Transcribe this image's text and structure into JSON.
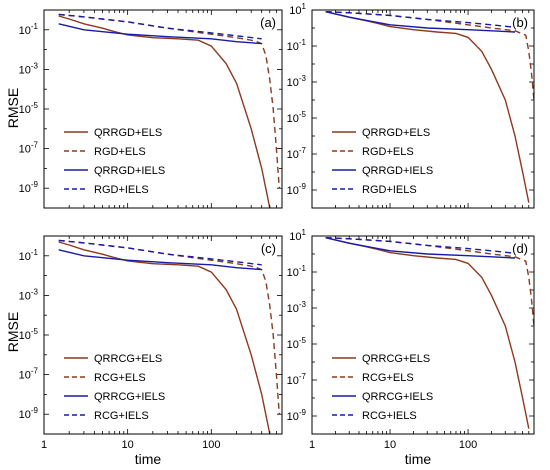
{
  "figure": {
    "ylabel": "RMSE",
    "xlabel": "time"
  },
  "styles": {
    "ELS": {
      "color": "#8b3a1e",
      "dash": ""
    },
    "ELS_dashed": {
      "color": "#8b3a1e",
      "dash": "6,4"
    },
    "IELS": {
      "color": "#1a1aaa",
      "dash": ""
    },
    "IELS_dashed": {
      "color": "#1a1aaa",
      "dash": "6,4"
    }
  },
  "chart_data": [
    {
      "type": "line",
      "panel_label": "(a)",
      "x_scale": "log",
      "y_scale": "log",
      "xlim": [
        1,
        700
      ],
      "ylim": [
        1e-10,
        1
      ],
      "xticks": [
        {
          "v": 1,
          "label": "1"
        },
        {
          "v": 10,
          "label": "10"
        },
        {
          "v": 100,
          "label": "100"
        }
      ],
      "yticks": [
        {
          "v": 0.1,
          "exp": "-1"
        },
        {
          "v": 0.001,
          "exp": "-3"
        },
        {
          "v": 1e-05,
          "exp": "-5"
        },
        {
          "v": 1e-07,
          "exp": "-7"
        },
        {
          "v": 1e-09,
          "exp": "-9"
        }
      ],
      "legend_position": "bottom-left",
      "series": [
        {
          "name": "QRRGD+ELS",
          "style": "ELS",
          "x": [
            1.5,
            2,
            3,
            5,
            7,
            10,
            20,
            40,
            70,
            100,
            150,
            200,
            300,
            400,
            500
          ],
          "y": [
            0.5,
            0.35,
            0.2,
            0.12,
            0.08,
            0.055,
            0.04,
            0.035,
            0.03,
            0.015,
            0.002,
            0.0002,
            1e-06,
            1e-08,
            1e-10
          ]
        },
        {
          "name": "RGD+ELS",
          "style": "ELS_dashed",
          "x": [
            1.5,
            3,
            10,
            30,
            100,
            200,
            300,
            350,
            400,
            450,
            500,
            550,
            600,
            650
          ],
          "y": [
            0.6,
            0.45,
            0.25,
            0.12,
            0.06,
            0.04,
            0.03,
            0.025,
            0.02,
            0.005,
            0.0003,
            1e-05,
            1e-07,
            1e-09
          ]
        },
        {
          "name": "QRRGD+IELS",
          "style": "IELS",
          "x": [
            1.5,
            3,
            10,
            30,
            100,
            200,
            400
          ],
          "y": [
            0.2,
            0.1,
            0.06,
            0.045,
            0.035,
            0.025,
            0.02
          ]
        },
        {
          "name": "RGD+IELS",
          "style": "IELS_dashed",
          "x": [
            1.5,
            3,
            10,
            30,
            100,
            200,
            400
          ],
          "y": [
            0.6,
            0.45,
            0.25,
            0.12,
            0.07,
            0.05,
            0.035
          ]
        }
      ]
    },
    {
      "type": "line",
      "panel_label": "(b)",
      "x_scale": "log",
      "y_scale": "log",
      "xlim": [
        1,
        700
      ],
      "ylim": [
        1e-10,
        10
      ],
      "xticks": [
        {
          "v": 1,
          "label": "1"
        },
        {
          "v": 10,
          "label": "10"
        },
        {
          "v": 100,
          "label": "100"
        }
      ],
      "yticks": [
        {
          "v": 10,
          "exp": "1"
        },
        {
          "v": 0.1,
          "exp": "-1"
        },
        {
          "v": 0.001,
          "exp": "-3"
        },
        {
          "v": 1e-05,
          "exp": "-5"
        },
        {
          "v": 1e-07,
          "exp": "-7"
        },
        {
          "v": 1e-09,
          "exp": "-9"
        }
      ],
      "legend_position": "bottom-left",
      "series": [
        {
          "name": "QRRGD+ELS",
          "style": "ELS",
          "x": [
            1.5,
            2,
            3,
            5,
            7,
            10,
            20,
            40,
            70,
            100,
            150,
            200,
            300,
            400,
            500,
            600
          ],
          "y": [
            8,
            6,
            4,
            2.5,
            1.8,
            1.2,
            0.8,
            0.6,
            0.5,
            0.3,
            0.05,
            0.005,
            0.0001,
            1e-06,
            1e-08,
            2e-10
          ]
        },
        {
          "name": "RGD+ELS",
          "style": "ELS_dashed",
          "x": [
            1.5,
            3,
            10,
            30,
            100,
            200,
            400,
            550,
            600,
            650,
            700
          ],
          "y": [
            8,
            7,
            5,
            3,
            1.5,
            1,
            0.7,
            0.4,
            0.05,
            0.003,
            0.0001
          ]
        },
        {
          "name": "QRRGD+IELS",
          "style": "IELS",
          "x": [
            1.5,
            3,
            10,
            30,
            100,
            200,
            400
          ],
          "y": [
            8,
            4,
            1.5,
            1,
            0.8,
            0.7,
            0.6
          ]
        },
        {
          "name": "RGD+IELS",
          "style": "IELS_dashed",
          "x": [
            1.5,
            3,
            10,
            30,
            100,
            200,
            400
          ],
          "y": [
            8,
            7,
            5,
            3,
            2,
            1.5,
            1.1
          ]
        }
      ]
    },
    {
      "type": "line",
      "panel_label": "(c)",
      "x_scale": "log",
      "y_scale": "log",
      "xlim": [
        1,
        700
      ],
      "ylim": [
        1e-10,
        1
      ],
      "xticks": [
        {
          "v": 1,
          "label": "1"
        },
        {
          "v": 10,
          "label": "10"
        },
        {
          "v": 100,
          "label": "100"
        }
      ],
      "yticks": [
        {
          "v": 0.1,
          "exp": "-1"
        },
        {
          "v": 0.001,
          "exp": "-3"
        },
        {
          "v": 1e-05,
          "exp": "-5"
        },
        {
          "v": 1e-07,
          "exp": "-7"
        },
        {
          "v": 1e-09,
          "exp": "-9"
        }
      ],
      "legend_position": "bottom-left",
      "series": [
        {
          "name": "QRRCG+ELS",
          "style": "ELS",
          "x": [
            1.5,
            2,
            3,
            5,
            7,
            10,
            20,
            40,
            70,
            100,
            150,
            200,
            300,
            400,
            500
          ],
          "y": [
            0.5,
            0.35,
            0.2,
            0.12,
            0.08,
            0.055,
            0.04,
            0.035,
            0.03,
            0.015,
            0.002,
            0.0002,
            1e-06,
            1e-08,
            1e-10
          ]
        },
        {
          "name": "RCG+ELS",
          "style": "ELS_dashed",
          "x": [
            1.5,
            3,
            10,
            30,
            100,
            200,
            300,
            350,
            400,
            450,
            500,
            550,
            600,
            650
          ],
          "y": [
            0.6,
            0.45,
            0.25,
            0.12,
            0.06,
            0.04,
            0.03,
            0.025,
            0.02,
            0.005,
            0.0003,
            1e-05,
            1e-07,
            1e-09
          ]
        },
        {
          "name": "QRRCG+IELS",
          "style": "IELS",
          "x": [
            1.5,
            3,
            10,
            30,
            100,
            200,
            400
          ],
          "y": [
            0.2,
            0.1,
            0.06,
            0.045,
            0.035,
            0.025,
            0.02
          ]
        },
        {
          "name": "RCG+IELS",
          "style": "IELS_dashed",
          "x": [
            1.5,
            3,
            10,
            30,
            100,
            200,
            400
          ],
          "y": [
            0.6,
            0.45,
            0.25,
            0.12,
            0.07,
            0.05,
            0.035
          ]
        }
      ]
    },
    {
      "type": "line",
      "panel_label": "(d)",
      "x_scale": "log",
      "y_scale": "log",
      "xlim": [
        1,
        700
      ],
      "ylim": [
        1e-10,
        10
      ],
      "xticks": [
        {
          "v": 1,
          "label": "1"
        },
        {
          "v": 10,
          "label": "10"
        },
        {
          "v": 100,
          "label": "100"
        }
      ],
      "yticks": [
        {
          "v": 10,
          "exp": "1"
        },
        {
          "v": 0.1,
          "exp": "-1"
        },
        {
          "v": 0.001,
          "exp": "-3"
        },
        {
          "v": 1e-05,
          "exp": "-5"
        },
        {
          "v": 1e-07,
          "exp": "-7"
        },
        {
          "v": 1e-09,
          "exp": "-9"
        }
      ],
      "legend_position": "bottom-left",
      "series": [
        {
          "name": "QRRCG+ELS",
          "style": "ELS",
          "x": [
            1.5,
            2,
            3,
            5,
            7,
            10,
            20,
            40,
            70,
            100,
            150,
            200,
            300,
            400,
            500,
            600
          ],
          "y": [
            8,
            6,
            4,
            2.5,
            1.8,
            1.2,
            0.8,
            0.6,
            0.5,
            0.3,
            0.05,
            0.005,
            0.0001,
            1e-06,
            1e-08,
            2e-10
          ]
        },
        {
          "name": "RCG+ELS",
          "style": "ELS_dashed",
          "x": [
            1.5,
            3,
            10,
            30,
            100,
            200,
            400,
            550,
            600,
            650,
            700
          ],
          "y": [
            8,
            7,
            5,
            3,
            1.5,
            1,
            0.7,
            0.4,
            0.05,
            0.003,
            0.0001
          ]
        },
        {
          "name": "QRRCG+IELS",
          "style": "IELS",
          "x": [
            1.5,
            3,
            10,
            30,
            100,
            200,
            400
          ],
          "y": [
            8,
            4,
            1.5,
            1,
            0.8,
            0.7,
            0.6
          ]
        },
        {
          "name": "RCG+IELS",
          "style": "IELS_dashed",
          "x": [
            1.5,
            3,
            10,
            30,
            100,
            200,
            400
          ],
          "y": [
            8,
            7,
            5,
            3,
            2,
            1.5,
            1.1
          ]
        }
      ]
    }
  ]
}
